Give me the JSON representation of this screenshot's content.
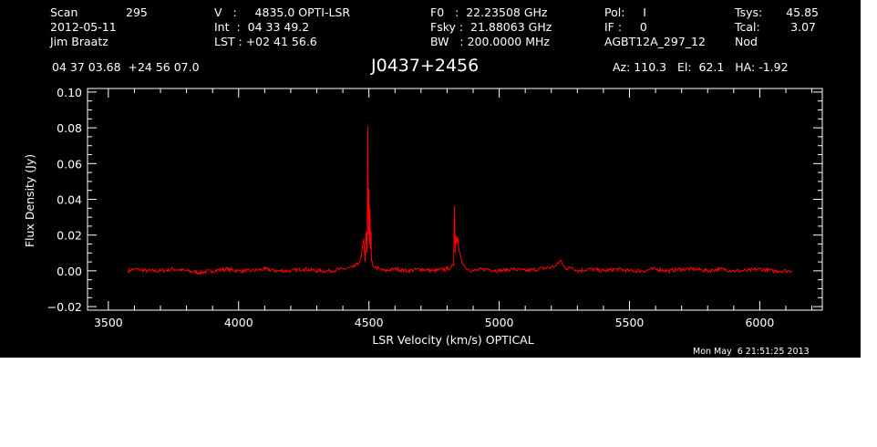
{
  "header": {
    "col1": {
      "label1": "Scan",
      "value1": "295",
      "line2": "2012-05-11",
      "line3": "Jim Braatz"
    },
    "col2": {
      "line1": "V   :     4835.0 OPTI-LSR",
      "line2": "Int  :  04 33 49.2",
      "line3": "LST : +02 41 56.6"
    },
    "col3": {
      "line1": "F0   :  22.23508 GHz",
      "line2": "Fsky :  21.88063 GHz",
      "line3": "BW   : 200.0000 MHz"
    },
    "col4": {
      "line1": "Pol:     I",
      "line2": "IF :     0",
      "line3": "AGBT12A_297_12"
    },
    "col5": {
      "label1": "Tsys:",
      "value1": "45.85",
      "label2": "Tcal:",
      "value2": "3.07",
      "line3": "Nod"
    },
    "coords": "04 37 03.68  +24 56 07.0",
    "source": "J0437+2456",
    "azel": "Az: 110.3   El:  62.1   HA: -1.92"
  },
  "timestamp": "Mon May  6 21:51:25 2013",
  "colors": {
    "background": "#000000",
    "axes": "#ffffff",
    "trace": "#ff0000",
    "page": "#ffffff"
  },
  "chart_data": {
    "type": "line",
    "title": "",
    "xlabel": "LSR Velocity (km/s) OPTICAL",
    "ylabel": "Flux Density (Jy)",
    "xlim": [
      3420,
      6240
    ],
    "ylim": [
      -0.022,
      0.102
    ],
    "x_ticks": [
      3500,
      4000,
      4500,
      5000,
      5500,
      6000
    ],
    "x_tick_labels": [
      "3500",
      "4000",
      "4500",
      "5000",
      "5500",
      "6000"
    ],
    "y_ticks": [
      -0.02,
      0.0,
      0.02,
      0.04,
      0.06,
      0.08,
      0.1
    ],
    "y_tick_labels": [
      "−0.02",
      "0.00",
      "0.02",
      "0.04",
      "0.06",
      "0.08",
      "0.10"
    ],
    "grid": false,
    "series": [
      {
        "color": "#ff0000",
        "x": [
          3575,
          3600,
          3650,
          3700,
          3750,
          3800,
          3850,
          3900,
          3950,
          4000,
          4050,
          4100,
          4150,
          4200,
          4250,
          4300,
          4350,
          4400,
          4440,
          4460,
          4470,
          4480,
          4485,
          4490,
          4493,
          4496,
          4498,
          4500,
          4502,
          4504,
          4506,
          4508,
          4510,
          4515,
          4525,
          4540,
          4560,
          4600,
          4650,
          4700,
          4750,
          4800,
          4815,
          4825,
          4828,
          4831,
          4834,
          4837,
          4840,
          4845,
          4850,
          4855,
          4860,
          4870,
          4880,
          4900,
          4950,
          5000,
          5050,
          5100,
          5150,
          5200,
          5220,
          5235,
          5245,
          5260,
          5280,
          5300,
          5350,
          5400,
          5450,
          5500,
          5550,
          5600,
          5650,
          5700,
          5750,
          5800,
          5850,
          5900,
          5950,
          6000,
          6050,
          6100,
          6125
        ],
        "y": [
          0.0,
          0.001,
          0.0,
          0.0,
          0.001,
          0.0,
          -0.001,
          0.0,
          0.001,
          0.0,
          0.0,
          0.001,
          0.0,
          0.0,
          0.001,
          0.0,
          0.0,
          0.001,
          0.002,
          0.004,
          0.008,
          0.018,
          0.005,
          0.022,
          0.01,
          0.081,
          0.02,
          0.046,
          0.015,
          0.035,
          0.012,
          0.022,
          0.006,
          0.003,
          0.002,
          0.001,
          0.0,
          0.001,
          0.0,
          0.001,
          0.0,
          0.001,
          0.002,
          0.003,
          0.036,
          0.01,
          0.02,
          0.015,
          0.019,
          0.012,
          0.01,
          0.006,
          0.004,
          0.002,
          0.001,
          0.0,
          0.001,
          0.0,
          0.001,
          0.0,
          0.001,
          0.002,
          0.003,
          0.006,
          0.003,
          0.001,
          0.002,
          0.0,
          0.001,
          0.0,
          0.001,
          0.0,
          0.0,
          0.001,
          0.0,
          0.001,
          0.001,
          0.0,
          0.001,
          0.0,
          0.0,
          0.001,
          0.0,
          0.0,
          0.0
        ]
      }
    ]
  }
}
